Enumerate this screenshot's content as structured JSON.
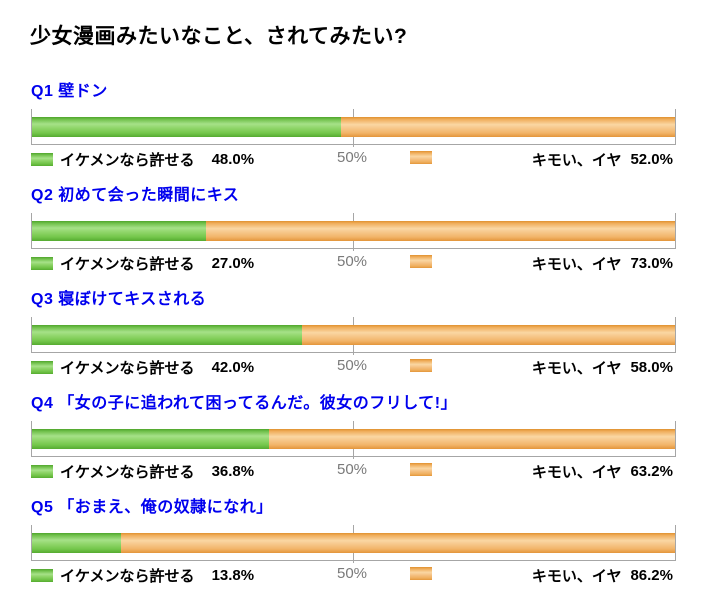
{
  "title": "少女漫画みたいなこと、されてみたい?",
  "axis": {
    "mid_label": "50%"
  },
  "legend": {
    "yes_label": "イケメンなら許せる",
    "no_label": "キモい、イヤ"
  },
  "colors": {
    "heading_blue": "#0000ee",
    "yes_green": "#6abf45",
    "no_orange": "#f5b169",
    "axis_gray": "#a6a6a6",
    "mid_label_gray": "#7a7a7a"
  },
  "questions": [
    {
      "id": "Q1",
      "heading": "Q1 壁ドン",
      "yes_value": 48.0,
      "no_value": 52.0,
      "yes_pct": "48.0%",
      "no_pct": "52.0%"
    },
    {
      "id": "Q2",
      "heading": "Q2 初めて会った瞬間にキス",
      "yes_value": 27.0,
      "no_value": 73.0,
      "yes_pct": "27.0%",
      "no_pct": "73.0%"
    },
    {
      "id": "Q3",
      "heading": "Q3 寝ぼけてキスされる",
      "yes_value": 42.0,
      "no_value": 58.0,
      "yes_pct": "42.0%",
      "no_pct": "58.0%"
    },
    {
      "id": "Q4",
      "heading": "Q4 「女の子に追われて困ってるんだ。彼女のフリして!」",
      "yes_value": 36.8,
      "no_value": 63.2,
      "yes_pct": "36.8%",
      "no_pct": "63.2%"
    },
    {
      "id": "Q5",
      "heading": "Q5 「おまえ、俺の奴隷になれ」",
      "yes_value": 13.8,
      "no_value": 86.2,
      "yes_pct": "13.8%",
      "no_pct": "86.2%"
    }
  ],
  "chart_data": {
    "type": "bar",
    "orientation": "horizontal",
    "stacked": true,
    "title": "少女漫画みたいなこと、されてみたい?",
    "categories": [
      "Q1 壁ドン",
      "Q2 初めて会った瞬間にキス",
      "Q3 寝ぼけてキスされる",
      "Q4 「女の子に追われて困ってるんだ。彼女のフリして!」",
      "Q5 「おまえ、俺の奴隷になれ」"
    ],
    "series": [
      {
        "name": "イケメンなら許せる",
        "color": "#6abf45",
        "values": [
          48.0,
          27.0,
          42.0,
          36.8,
          13.8
        ]
      },
      {
        "name": "キモい、イヤ",
        "color": "#f5b169",
        "values": [
          52.0,
          73.0,
          58.0,
          63.2,
          86.2
        ]
      }
    ],
    "xlabel": "",
    "ylabel": "",
    "xlim": [
      0,
      100
    ],
    "gridlines": {
      "x_ticks": [
        50
      ],
      "tick_labels": [
        "50%"
      ]
    },
    "legend_position": "below-each-bar"
  }
}
